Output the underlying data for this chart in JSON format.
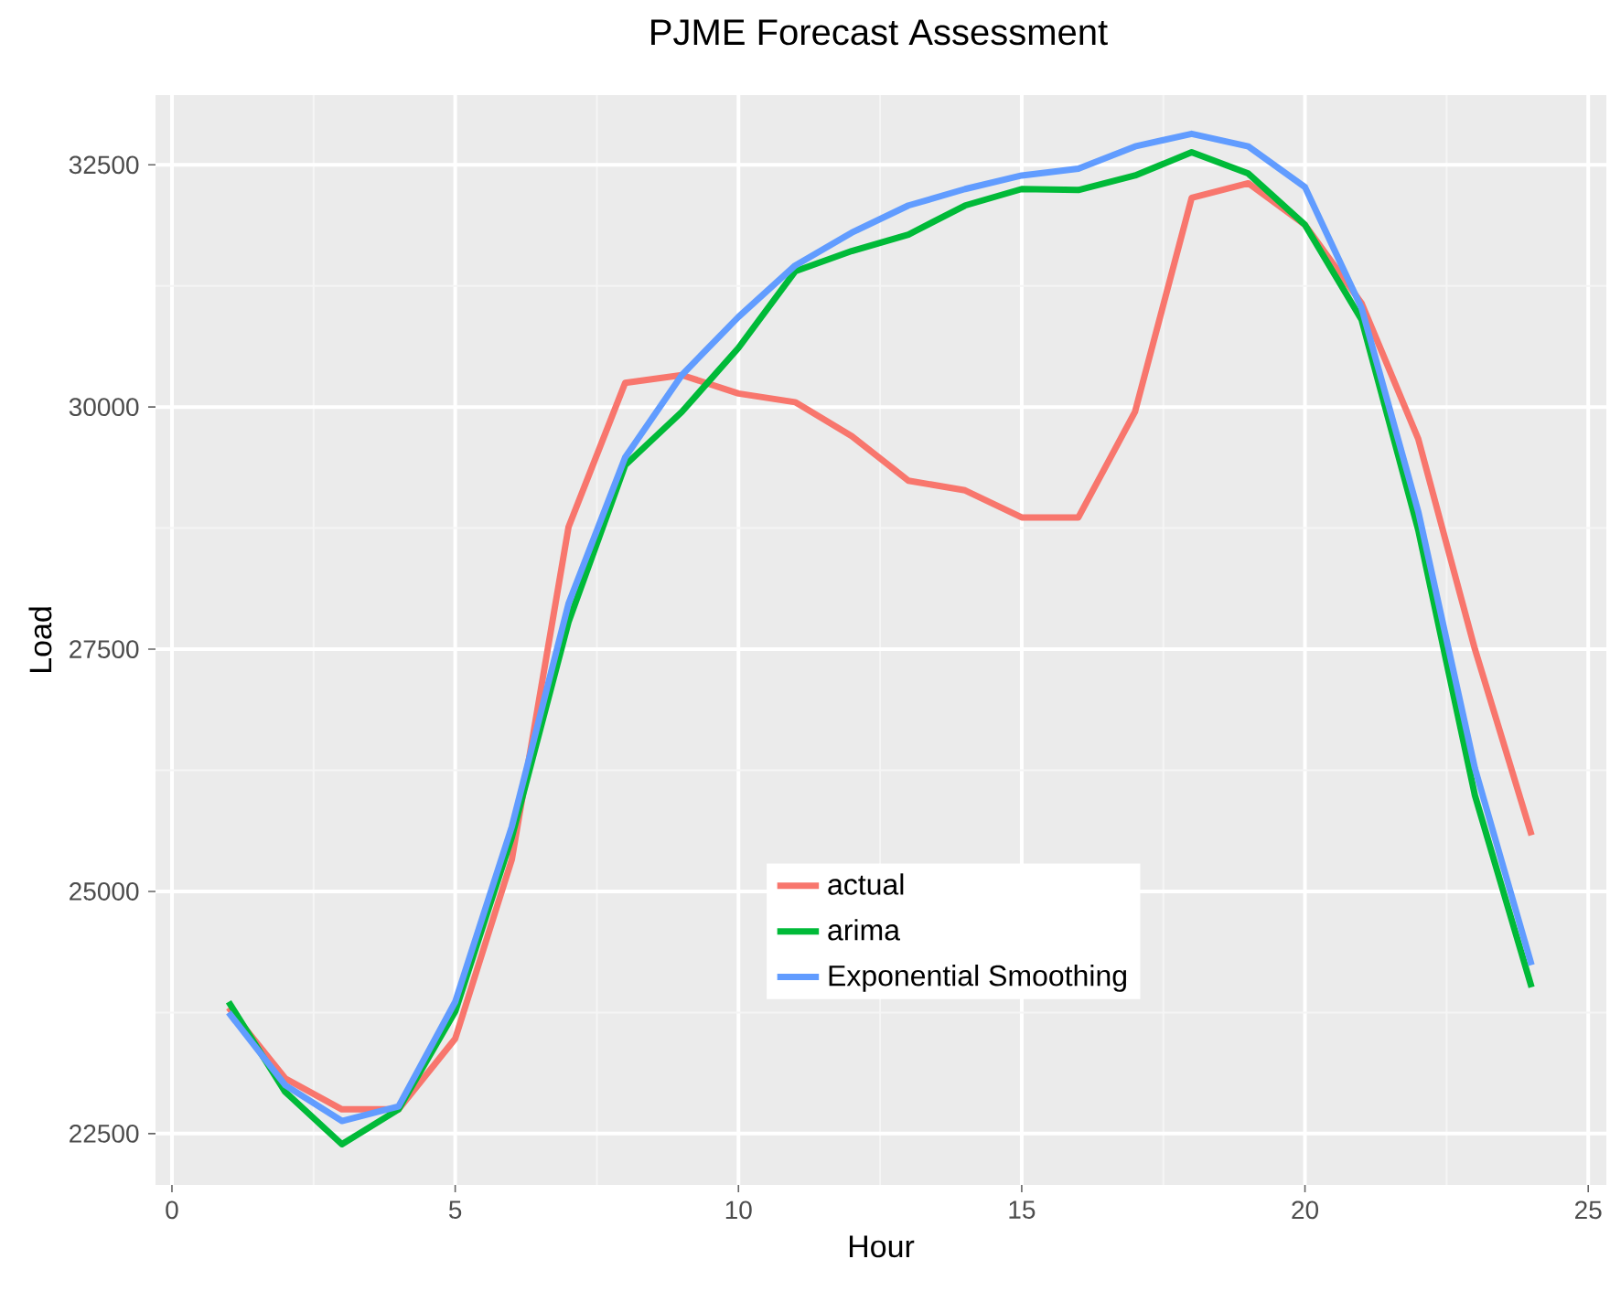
{
  "chart_data": {
    "type": "line",
    "title": "PJME Forecast Assessment",
    "xlabel": "Hour",
    "ylabel": "Load",
    "x": [
      1,
      2,
      3,
      4,
      5,
      6,
      7,
      8,
      9,
      10,
      11,
      12,
      13,
      14,
      15,
      16,
      17,
      18,
      19,
      20,
      21,
      22,
      23,
      24
    ],
    "series": [
      {
        "name": "actual",
        "color": "#f8766d",
        "values": [
          23800,
          23070,
          22750,
          22750,
          23480,
          25330,
          28760,
          30250,
          30330,
          30140,
          30050,
          29700,
          29240,
          29140,
          28860,
          28860,
          29950,
          32160,
          32310,
          31880,
          31070,
          29670,
          27500,
          25580
        ]
      },
      {
        "name": "arima",
        "color": "#00ba38",
        "values": [
          23860,
          22930,
          22390,
          22750,
          23760,
          25560,
          27780,
          29400,
          29950,
          30610,
          31400,
          31610,
          31780,
          32080,
          32250,
          32240,
          32390,
          32630,
          32410,
          31880,
          30900,
          28730,
          25990,
          24010
        ]
      },
      {
        "name": "Exponential Smoothing",
        "color": "#619cff",
        "values": [
          23750,
          23000,
          22630,
          22780,
          23860,
          25670,
          27970,
          29480,
          30330,
          30930,
          31460,
          31800,
          32080,
          32250,
          32390,
          32460,
          32690,
          32820,
          32690,
          32270,
          31020,
          28920,
          26270,
          24240
        ]
      }
    ],
    "xlim": [
      -0.29,
      25.32
    ],
    "ylim": [
      21970,
      33220
    ],
    "xticks": [
      0,
      5,
      10,
      15,
      20,
      25
    ],
    "yticks": [
      22500,
      25000,
      27500,
      30000,
      32500
    ],
    "grid": true,
    "legend": "bottom",
    "marker": "none",
    "line_style": "solid"
  }
}
